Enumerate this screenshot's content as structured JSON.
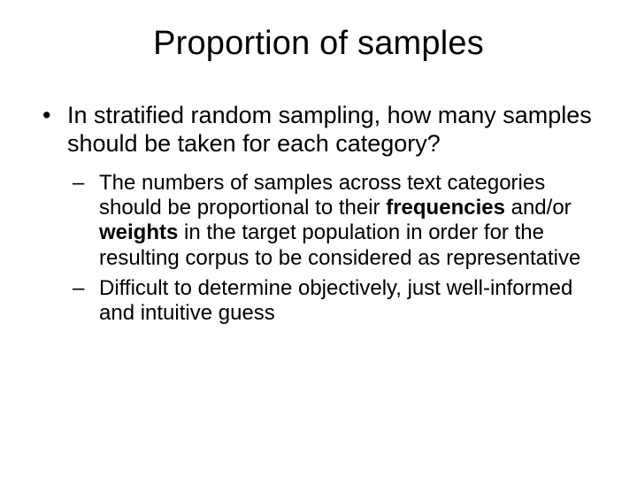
{
  "background_color": "#ffffff",
  "text_color": "#000000",
  "title": {
    "text": "Proportion of samples",
    "fontsize": 38,
    "fontweight": 400,
    "align": "center"
  },
  "bullets": {
    "level1": {
      "fontsize": 27,
      "marker": "•",
      "items": [
        {
          "text": "In stratified random sampling, how many samples should be taken for each category?"
        }
      ]
    },
    "level2": {
      "fontsize": 24,
      "marker": "–",
      "items": [
        {
          "segments": [
            {
              "text": "The numbers of samples across text categories should be proportional to their ",
              "bold": false
            },
            {
              "text": "frequencies",
              "bold": true
            },
            {
              "text": " and/or ",
              "bold": false
            },
            {
              "text": "weights",
              "bold": true
            },
            {
              "text": " in the target population in order for the resulting corpus to be considered as representative",
              "bold": false
            }
          ]
        },
        {
          "segments": [
            {
              "text": "Difficult to determine objectively, just well-informed and intuitive guess",
              "bold": false
            }
          ]
        }
      ]
    }
  }
}
